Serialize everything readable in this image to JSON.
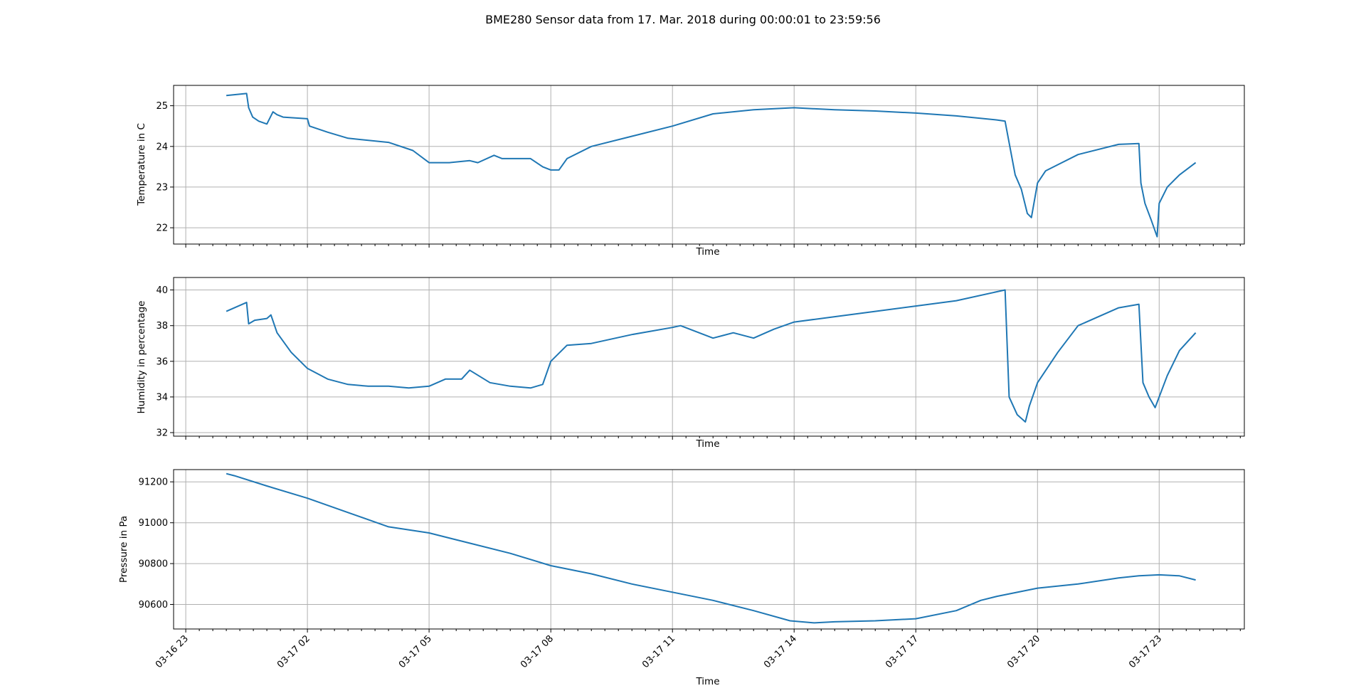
{
  "title": "BME280 Sensor data from 17. Mar. 2018 during 00:00:01 to 23:59:56",
  "series_color": "#1f77b4",
  "grid_color": "#b0b0b0",
  "x_tick_labels": [
    "03-16 23",
    "03-17 02",
    "03-17 05",
    "03-17 08",
    "03-17 11",
    "03-17 14",
    "03-17 17",
    "03-17 20",
    "03-17 23"
  ],
  "chart_data": [
    {
      "type": "line",
      "xlabel": "Time",
      "ylabel": "Temperature in C",
      "xlim": [
        -1.3,
        25.1
      ],
      "ylim": [
        21.6,
        25.5
      ],
      "yticks": [
        22,
        23,
        24,
        25
      ],
      "grid": true,
      "x_unit": "hours after 03-17 00:00",
      "x": [
        0.0,
        0.5,
        0.55,
        0.65,
        0.8,
        1.0,
        1.15,
        1.25,
        1.4,
        2.0,
        2.05,
        2.5,
        3.0,
        4.0,
        4.6,
        5.0,
        5.5,
        6.0,
        6.2,
        6.6,
        6.8,
        7.5,
        7.8,
        8.0,
        8.2,
        8.4,
        9.0,
        10.0,
        11.0,
        12.0,
        13.0,
        14.0,
        15.0,
        16.0,
        17.0,
        18.0,
        19.0,
        19.2,
        19.45,
        19.6,
        19.75,
        19.85,
        20.0,
        20.2,
        20.5,
        21.0,
        22.0,
        22.5,
        22.55,
        22.65,
        22.8,
        22.95,
        23.0,
        23.2,
        23.5,
        23.9
      ],
      "y": [
        25.25,
        25.3,
        24.95,
        24.72,
        24.62,
        24.55,
        24.85,
        24.78,
        24.72,
        24.68,
        24.5,
        24.35,
        24.2,
        24.1,
        23.9,
        23.6,
        23.6,
        23.65,
        23.6,
        23.78,
        23.7,
        23.7,
        23.5,
        23.42,
        23.42,
        23.7,
        24.0,
        24.25,
        24.5,
        24.8,
        24.9,
        24.95,
        24.9,
        24.87,
        24.82,
        24.75,
        24.65,
        24.62,
        23.3,
        22.95,
        22.35,
        22.25,
        23.1,
        23.4,
        23.55,
        23.8,
        24.05,
        24.07,
        23.1,
        22.6,
        22.2,
        21.78,
        22.6,
        23.0,
        23.3,
        23.6
      ]
    },
    {
      "type": "line",
      "xlabel": "Time",
      "ylabel": "Humidity in percentage",
      "xlim": [
        -1.3,
        25.1
      ],
      "ylim": [
        31.8,
        40.7
      ],
      "yticks": [
        32,
        34,
        36,
        38,
        40
      ],
      "grid": true,
      "x_unit": "hours after 03-17 00:00",
      "x": [
        0.0,
        0.5,
        0.55,
        0.7,
        1.0,
        1.1,
        1.25,
        1.6,
        2.0,
        2.5,
        3.0,
        3.5,
        4.0,
        4.5,
        5.0,
        5.4,
        5.8,
        6.0,
        6.5,
        7.0,
        7.5,
        7.8,
        8.0,
        8.4,
        9.0,
        10.0,
        11.0,
        11.2,
        12.0,
        12.5,
        13.0,
        13.5,
        14.0,
        15.0,
        16.0,
        17.0,
        18.0,
        19.0,
        19.2,
        19.3,
        19.5,
        19.7,
        19.8,
        20.0,
        20.5,
        21.0,
        22.0,
        22.5,
        22.6,
        22.75,
        22.9,
        23.2,
        23.5,
        23.9
      ],
      "y": [
        38.8,
        39.3,
        38.1,
        38.3,
        38.4,
        38.6,
        37.6,
        36.5,
        35.6,
        35.0,
        34.7,
        34.6,
        34.6,
        34.5,
        34.6,
        35.0,
        35.0,
        35.5,
        34.8,
        34.6,
        34.5,
        34.7,
        36.0,
        36.9,
        37.0,
        37.5,
        37.9,
        38.0,
        37.3,
        37.6,
        37.3,
        37.8,
        38.2,
        38.5,
        38.8,
        39.1,
        39.4,
        39.9,
        40.0,
        34.0,
        33.0,
        32.6,
        33.5,
        34.8,
        36.5,
        38.0,
        39.0,
        39.2,
        34.8,
        34.0,
        33.4,
        35.2,
        36.6,
        37.6
      ]
    },
    {
      "type": "line",
      "xlabel": "Time",
      "ylabel": "Pressure in Pa",
      "xlim": [
        -1.3,
        25.1
      ],
      "ylim": [
        90480,
        91260
      ],
      "yticks": [
        90600,
        90800,
        91000,
        91200
      ],
      "xticks_hours": [
        -1,
        2,
        5,
        8,
        11,
        14,
        17,
        20,
        23
      ],
      "grid": true,
      "x_unit": "hours after 03-17 00:00",
      "x": [
        0.0,
        0.2,
        1.0,
        2.0,
        3.0,
        4.0,
        5.0,
        6.0,
        7.0,
        8.0,
        9.0,
        10.0,
        11.0,
        12.0,
        13.0,
        13.9,
        14.5,
        15.0,
        16.0,
        17.0,
        18.0,
        18.6,
        19.0,
        20.0,
        21.0,
        22.0,
        22.5,
        23.0,
        23.5,
        23.9
      ],
      "y": [
        91240,
        91230,
        91180,
        91120,
        91050,
        90980,
        90950,
        90900,
        90850,
        90790,
        90750,
        90700,
        90660,
        90620,
        90570,
        90520,
        90510,
        90515,
        90520,
        90530,
        90570,
        90620,
        90640,
        90680,
        90700,
        90730,
        90740,
        90745,
        90740,
        90720
      ]
    }
  ]
}
